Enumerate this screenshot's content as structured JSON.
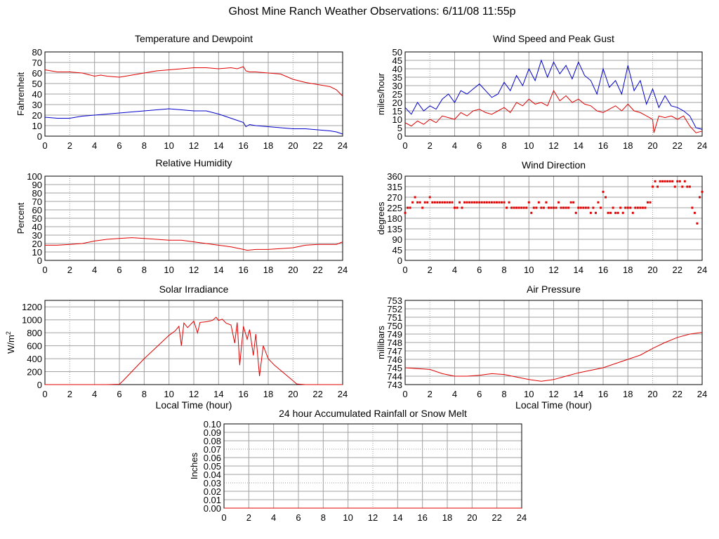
{
  "page": {
    "title": "Ghost Mine Ranch Weather Observations: 6/11/08 11:55p"
  },
  "colors": {
    "red": "#e00000",
    "blue": "#0000cc",
    "grid": "#a0a0a0",
    "axis": "#000000"
  },
  "chart_data": [
    {
      "id": "temp",
      "type": "line",
      "title": "Temperature and Dewpoint",
      "ylabel": "Fahrenheit",
      "xlabel": "",
      "xlim": [
        0,
        24
      ],
      "ylim": [
        0,
        80
      ],
      "xticks": [
        0,
        2,
        4,
        6,
        8,
        10,
        12,
        14,
        16,
        18,
        20,
        22,
        24
      ],
      "yticks": [
        0,
        10,
        20,
        30,
        40,
        50,
        60,
        70,
        80
      ],
      "ytick_labels": [
        "0",
        "10",
        "20",
        "30",
        "40",
        "50",
        "60",
        "70",
        "80"
      ],
      "grid": true,
      "series": [
        {
          "color": "#e00000",
          "x": [
            0,
            0.5,
            1,
            2,
            3,
            4,
            4.5,
            5,
            6,
            7,
            8,
            9,
            10,
            11,
            12,
            13,
            14,
            15,
            15.5,
            16,
            16.2,
            16.5,
            17,
            18,
            19,
            20,
            21,
            22,
            23,
            23.5,
            24
          ],
          "y": [
            63,
            62,
            61,
            61,
            60,
            57,
            58,
            57,
            56,
            58,
            60,
            62,
            63,
            64,
            65,
            65,
            64,
            65,
            64,
            66,
            62,
            61,
            61,
            60,
            59,
            54,
            51,
            49,
            47,
            44,
            38
          ]
        },
        {
          "color": "#0000cc",
          "x": [
            0,
            1,
            2,
            3,
            4,
            5,
            6,
            7,
            8,
            9,
            10,
            11,
            12,
            13,
            14,
            15,
            15.5,
            16,
            16.2,
            16.5,
            17,
            18,
            19,
            20,
            21,
            22,
            23,
            23.5,
            24
          ],
          "y": [
            18,
            17,
            17,
            19,
            20,
            21,
            22,
            23,
            24,
            25,
            26,
            25,
            24,
            24,
            21,
            17,
            15,
            13,
            9,
            11,
            10,
            9,
            8,
            7,
            7,
            6,
            5,
            4,
            2
          ]
        }
      ]
    },
    {
      "id": "wind",
      "type": "line",
      "title": "Wind Speed and Peak Gust",
      "ylabel": "miles/hour",
      "xlabel": "",
      "xlim": [
        0,
        24
      ],
      "ylim": [
        0,
        50
      ],
      "xticks": [
        0,
        2,
        4,
        6,
        8,
        10,
        12,
        14,
        16,
        18,
        20,
        22,
        24
      ],
      "yticks": [
        0,
        5,
        10,
        15,
        20,
        25,
        30,
        35,
        40,
        45,
        50
      ],
      "ytick_labels": [
        "0",
        "5",
        "10",
        "15",
        "20",
        "25",
        "30",
        "35",
        "40",
        "45",
        "50"
      ],
      "grid": true,
      "series": [
        {
          "color": "#0000cc",
          "x": [
            0,
            0.5,
            1,
            1.5,
            2,
            2.5,
            3,
            3.5,
            4,
            4.5,
            5,
            5.5,
            6,
            6.5,
            7,
            7.5,
            8,
            8.5,
            9,
            9.5,
            10,
            10.5,
            11,
            11.5,
            12,
            12.5,
            13,
            13.5,
            14,
            14.5,
            15,
            15.5,
            16,
            16.5,
            17,
            17.5,
            18,
            18.5,
            19,
            19.5,
            20,
            20.5,
            21,
            21.5,
            22,
            22.5,
            23,
            23.5,
            24
          ],
          "y": [
            17,
            13,
            20,
            15,
            18,
            16,
            22,
            25,
            20,
            27,
            25,
            28,
            31,
            27,
            23,
            25,
            32,
            27,
            36,
            30,
            40,
            33,
            45,
            35,
            44,
            37,
            42,
            34,
            44,
            36,
            33,
            25,
            40,
            29,
            33,
            25,
            42,
            27,
            33,
            19,
            28,
            17,
            24,
            18,
            17,
            15,
            12,
            5,
            4
          ]
        },
        {
          "color": "#e00000",
          "x": [
            0,
            0.5,
            1,
            1.5,
            2,
            2.5,
            3,
            3.5,
            4,
            4.5,
            5,
            5.5,
            6,
            6.5,
            7,
            7.5,
            8,
            8.5,
            9,
            9.5,
            10,
            10.5,
            11,
            11.5,
            12,
            12.5,
            13,
            13.5,
            14,
            14.5,
            15,
            15.5,
            16,
            16.5,
            17,
            17.5,
            18,
            18.5,
            19,
            19.5,
            20,
            20.1,
            20.5,
            21,
            21.5,
            22,
            22.5,
            23,
            23.5,
            24
          ],
          "y": [
            8,
            6,
            9,
            7,
            10,
            8,
            12,
            11,
            10,
            14,
            12,
            15,
            16,
            14,
            13,
            15,
            17,
            14,
            20,
            18,
            22,
            19,
            20,
            18,
            27,
            21,
            24,
            20,
            22,
            19,
            18,
            15,
            14,
            16,
            18,
            15,
            19,
            15,
            14,
            12,
            10,
            2,
            12,
            11,
            12,
            10,
            12,
            6,
            2,
            3
          ]
        }
      ]
    },
    {
      "id": "humidity",
      "type": "line",
      "title": "Relative Humidity",
      "ylabel": "Percent",
      "xlabel": "",
      "xlim": [
        0,
        24
      ],
      "ylim": [
        0,
        100
      ],
      "xticks": [
        0,
        2,
        4,
        6,
        8,
        10,
        12,
        14,
        16,
        18,
        20,
        22,
        24
      ],
      "yticks": [
        0,
        10,
        20,
        30,
        40,
        50,
        60,
        70,
        80,
        90,
        100
      ],
      "ytick_labels": [
        "0",
        "10",
        "20",
        "30",
        "40",
        "50",
        "60",
        "70",
        "80",
        "90",
        "100"
      ],
      "grid": true,
      "series": [
        {
          "color": "#e00000",
          "x": [
            0,
            1,
            2,
            3,
            4,
            5,
            6,
            7,
            8,
            9,
            10,
            11,
            12,
            13,
            14,
            15,
            16,
            16.3,
            17,
            18,
            19,
            20,
            21,
            22,
            23,
            23.5,
            24
          ],
          "y": [
            18,
            18,
            19,
            20,
            23,
            25,
            26,
            27,
            26,
            25,
            24,
            24,
            22,
            20,
            18,
            16,
            13,
            12,
            13,
            13,
            14,
            15,
            18,
            19,
            19,
            19,
            22
          ]
        }
      ]
    },
    {
      "id": "winddir",
      "type": "scatter",
      "title": "Wind Direction",
      "ylabel": "degrees",
      "xlabel": "",
      "xlim": [
        0,
        24
      ],
      "ylim": [
        0,
        360
      ],
      "xticks": [
        0,
        2,
        4,
        6,
        8,
        10,
        12,
        14,
        16,
        18,
        20,
        22,
        24
      ],
      "yticks": [
        0,
        45,
        90,
        135,
        180,
        225,
        270,
        315,
        360
      ],
      "ytick_labels": [
        "0",
        "45",
        "90",
        "135",
        "180",
        "225",
        "270",
        "315",
        "360"
      ],
      "grid": true,
      "series": [
        {
          "color": "#e00000",
          "x": [
            0,
            0.2,
            0.4,
            0.6,
            0.8,
            1,
            1.2,
            1.4,
            1.6,
            1.8,
            2,
            2.2,
            2.4,
            2.6,
            2.8,
            3,
            3.2,
            3.4,
            3.6,
            3.8,
            4,
            4.2,
            4.4,
            4.6,
            4.8,
            5,
            5.2,
            5.4,
            5.6,
            5.8,
            6,
            6.2,
            6.4,
            6.6,
            6.8,
            7,
            7.2,
            7.4,
            7.6,
            7.8,
            8,
            8.2,
            8.4,
            8.6,
            8.8,
            9,
            9.2,
            9.4,
            9.6,
            9.8,
            10,
            10.2,
            10.4,
            10.6,
            10.8,
            11,
            11.2,
            11.4,
            11.6,
            11.8,
            12,
            12.2,
            12.4,
            12.6,
            12.8,
            13,
            13.2,
            13.4,
            13.6,
            13.8,
            14,
            14.2,
            14.4,
            14.6,
            14.8,
            15,
            15.2,
            15.4,
            15.6,
            15.8,
            16,
            16.2,
            16.4,
            16.6,
            16.8,
            17,
            17.2,
            17.4,
            17.6,
            17.8,
            18,
            18.2,
            18.4,
            18.6,
            18.8,
            19,
            19.2,
            19.4,
            19.6,
            19.8,
            20,
            20.2,
            20.4,
            20.6,
            20.8,
            21,
            21.2,
            21.4,
            21.6,
            21.8,
            22,
            22.2,
            22.4,
            22.6,
            22.8,
            23,
            23.2,
            23.4,
            23.6,
            23.8,
            24
          ],
          "y": [
            203,
            225,
            225,
            248,
            270,
            248,
            248,
            225,
            248,
            248,
            270,
            248,
            248,
            248,
            248,
            248,
            248,
            248,
            248,
            248,
            225,
            225,
            248,
            225,
            248,
            248,
            248,
            248,
            248,
            248,
            248,
            248,
            248,
            248,
            248,
            248,
            248,
            248,
            248,
            248,
            248,
            225,
            248,
            225,
            225,
            225,
            225,
            225,
            225,
            225,
            248,
            203,
            225,
            225,
            248,
            225,
            225,
            248,
            225,
            225,
            225,
            225,
            248,
            225,
            225,
            225,
            225,
            248,
            248,
            203,
            225,
            225,
            225,
            225,
            225,
            203,
            225,
            203,
            248,
            225,
            293,
            270,
            203,
            203,
            225,
            203,
            203,
            225,
            203,
            225,
            225,
            225,
            203,
            225,
            225,
            225,
            225,
            225,
            248,
            248,
            315,
            338,
            315,
            338,
            338,
            338,
            338,
            338,
            338,
            315,
            338,
            338,
            315,
            338,
            315,
            315,
            225,
            203,
            158,
            270,
            293
          ]
        }
      ]
    },
    {
      "id": "solar",
      "type": "line",
      "title": "Solar Irradiance",
      "ylabel": "W/m2",
      "xlabel": "Local Time (hour)",
      "xlim": [
        0,
        24
      ],
      "ylim": [
        0,
        1300
      ],
      "xticks": [
        0,
        2,
        4,
        6,
        8,
        10,
        12,
        14,
        16,
        18,
        20,
        22,
        24
      ],
      "yticks": [
        0,
        200,
        400,
        600,
        800,
        1000,
        1200
      ],
      "ytick_labels": [
        "0",
        "200",
        "400",
        "600",
        "800",
        "1000",
        "1200"
      ],
      "grid": true,
      "series": [
        {
          "color": "#e00000",
          "x": [
            0,
            5,
            6,
            6.3,
            7,
            8,
            9,
            10,
            10.5,
            10.8,
            11,
            11.2,
            11.5,
            12,
            12.3,
            12.5,
            13,
            13.5,
            13.8,
            14,
            14.3,
            14.6,
            15,
            15.3,
            15.5,
            15.7,
            16,
            16.3,
            16.5,
            16.8,
            17,
            17.3,
            17.6,
            18,
            18.5,
            19,
            19.5,
            20,
            20.3,
            21,
            24
          ],
          "y": [
            0,
            0,
            5,
            60,
            200,
            400,
            580,
            760,
            830,
            900,
            600,
            950,
            880,
            980,
            800,
            960,
            970,
            990,
            1040,
            990,
            1010,
            950,
            920,
            640,
            960,
            300,
            900,
            700,
            850,
            450,
            780,
            130,
            600,
            400,
            300,
            220,
            140,
            60,
            10,
            0,
            0
          ]
        }
      ]
    },
    {
      "id": "pressure",
      "type": "line",
      "title": "Air Pressure",
      "ylabel": "millibars",
      "xlabel": "Local Time (hour)",
      "xlim": [
        0,
        24
      ],
      "ylim": [
        743,
        753
      ],
      "xticks": [
        0,
        2,
        4,
        6,
        8,
        10,
        12,
        14,
        16,
        18,
        20,
        22,
        24
      ],
      "yticks": [
        743,
        744,
        745,
        746,
        747,
        748,
        749,
        750,
        751,
        752,
        753
      ],
      "ytick_labels": [
        "743",
        "744",
        "745",
        "746",
        "747",
        "748",
        "749",
        "750",
        "751",
        "752",
        "753"
      ],
      "grid": true,
      "series": [
        {
          "color": "#e00000",
          "x": [
            0,
            1,
            2,
            3,
            4,
            5,
            6,
            7,
            8,
            9,
            10,
            11,
            12,
            13,
            14,
            15,
            16,
            17,
            18,
            19,
            20,
            21,
            22,
            23,
            24
          ],
          "y": [
            745.0,
            744.9,
            744.8,
            744.3,
            744.0,
            744.0,
            744.1,
            744.3,
            744.2,
            743.9,
            743.6,
            743.4,
            743.6,
            744.0,
            744.4,
            744.7,
            745.0,
            745.5,
            746.0,
            746.5,
            747.3,
            748.0,
            748.6,
            749.0,
            749.2
          ]
        }
      ]
    },
    {
      "id": "rain",
      "type": "line",
      "title": "24 hour Accumulated Rainfall or Snow Melt",
      "ylabel": "Inches",
      "xlabel": "",
      "xlim": [
        0,
        24
      ],
      "ylim": [
        0,
        0.1
      ],
      "xticks": [
        0,
        2,
        4,
        6,
        8,
        10,
        12,
        14,
        16,
        18,
        20,
        22,
        24
      ],
      "yticks": [
        0,
        0.01,
        0.02,
        0.03,
        0.04,
        0.05,
        0.06,
        0.07,
        0.08,
        0.09,
        0.1
      ],
      "ytick_labels": [
        "0.00",
        "0.01",
        "0.02",
        "0.03",
        "0.04",
        "0.05",
        "0.06",
        "0.07",
        "0.08",
        "0.09",
        "0.10"
      ],
      "grid": true,
      "series": [
        {
          "color": "#e00000",
          "x": [
            0,
            24
          ],
          "y": [
            0,
            0
          ]
        }
      ]
    }
  ]
}
